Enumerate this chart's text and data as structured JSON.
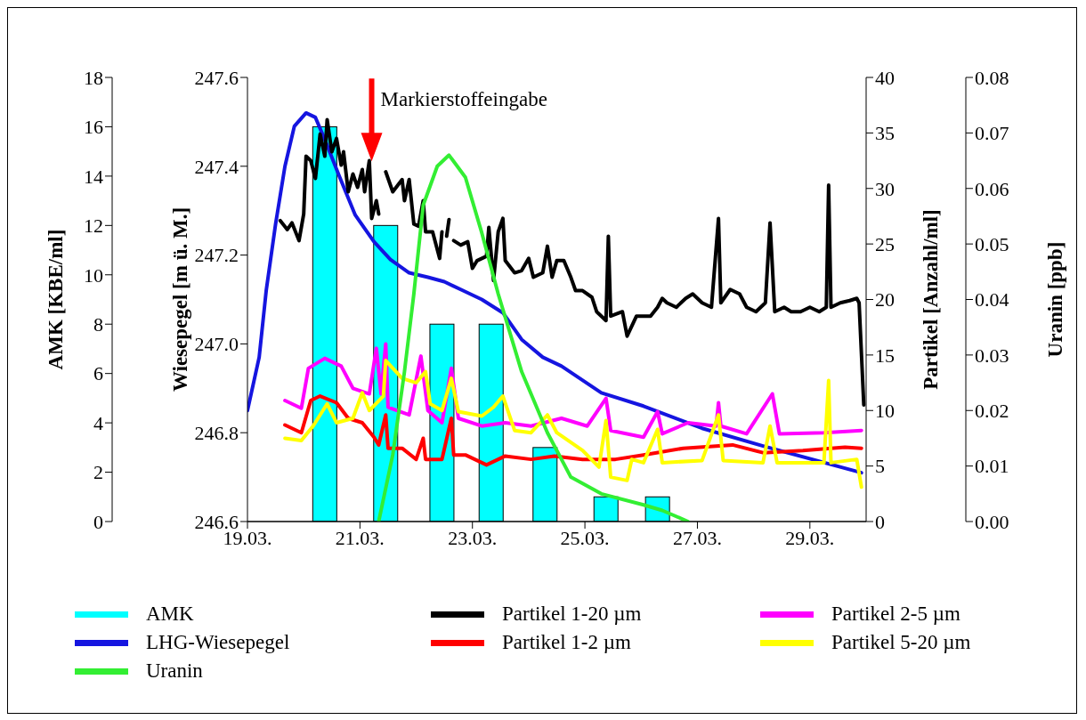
{
  "chart_data": [
    {
      "type": "line",
      "ylabel": "AMK [KBE/ml]",
      "y2label": "Wiesepegel [m ü. M.]",
      "y3label": "Partikel [Anzahl/ml]",
      "xlim": [
        "--03-19",
        "--03-30"
      ],
      "xticks": [
        {
          "value": "--03-19",
          "label": "19.03."
        },
        {
          "value": "--03-21",
          "label": "21.03."
        },
        {
          "value": "--03-23",
          "label": "23.03."
        },
        {
          "value": "--03-25",
          "label": "25.03."
        },
        {
          "value": "--03-27",
          "label": "27.03."
        },
        {
          "value": "--03-29",
          "label": "29.03."
        }
      ],
      "ylim": [
        0,
        18
      ],
      "yticks": [
        0,
        2,
        4,
        6,
        8,
        10,
        12,
        14,
        16,
        18
      ],
      "y2lim": [
        246.6,
        247.6
      ],
      "y2ticks": [
        246.6,
        246.8,
        {
          "value": 247,
          "label": "247.0"
        },
        247.2,
        247.4,
        247.6
      ],
      "y3lim": [
        0,
        40
      ],
      "y3ticks": [
        0,
        5,
        10,
        15,
        20,
        25,
        30,
        35,
        40
      ],
      "legend": "bottom",
      "annotations": [
        {
          "text": "Markierstoffeingabe",
          "x": "--03-21T05:00",
          "y": 14.6
        }
      ],
      "series": [
        {
          "name": "AMK",
          "type": "bar",
          "color": "#00ffff",
          "x": [
            "--03-20T09:00",
            "--03-21T11:00",
            "--03-22T11:00",
            "--03-23T08:00",
            "--03-24T07:00",
            "--03-25T09:00",
            "--03-26T07:00"
          ],
          "values": [
            16,
            12,
            8,
            8,
            3,
            1,
            1
          ]
        },
        {
          "name": "LHG-Wiesepegel",
          "axis": "y2",
          "color": "#1515e0",
          "x": [
            "--03-19T00:00",
            "--03-19T05:00",
            "--03-19T08:00",
            "--03-19T12:00",
            "--03-19T16:00",
            "--03-19T20:00",
            "--03-20T01:00",
            "--03-20T05:00",
            "--03-20T09:00",
            "--03-20T15:00",
            "--03-20T22:00",
            "--03-21T06:00",
            "--03-21T13:00",
            "--03-21T21:00",
            "--03-22T05:00",
            "--03-22T12:00",
            "--03-22T20:00",
            "--03-23T04:00",
            "--03-23T13:00",
            "--03-23T21:00",
            "--03-24T06:00",
            "--03-24T14:00",
            "--03-25T07:00",
            "--03-26T01:00",
            "--03-27T02:00",
            "--03-28T04:00",
            "--03-29T22:00"
          ],
          "values": [
            246.85,
            246.97,
            247.12,
            247.27,
            247.4,
            247.49,
            247.52,
            247.51,
            247.46,
            247.38,
            247.29,
            247.23,
            247.19,
            247.16,
            247.15,
            247.14,
            247.12,
            247.1,
            247.07,
            247.01,
            246.97,
            246.95,
            246.89,
            246.86,
            246.81,
            246.77,
            246.71
          ]
        },
        {
          "name": "Partikel 1-20 µm",
          "axis": "y3",
          "color": "#000000",
          "x": [
            "--03-19T14:00",
            "--03-19T17:00",
            "--03-19T19:00",
            "--03-19T22:00",
            "--03-20T00:00",
            "--03-20T01:00",
            "--03-20T03:00",
            "--03-20T05:00",
            "--03-20T07:00",
            "--03-20T09:00",
            "--03-20T10:00",
            "--03-20T12:00",
            "--03-20T14:00",
            "--03-20T16:00",
            "--03-20T17:00",
            "--03-20T19:00",
            "--03-20T21:00",
            "--03-20T23:00",
            "--03-21T01:00",
            "--03-21T02:00",
            "--03-21T04:00",
            "--03-21T05:00",
            "--03-21T07:00",
            "--03-21T08:00",
            "--03-21T10:00",
            "--03-21T11:00",
            "--03-21T14:00",
            "--03-21T18:00",
            "--03-21T19:00",
            "--03-21T21:00",
            "--03-21T23:00",
            "--03-22T01:00",
            "--03-22T03:00",
            "--03-22T04:00",
            "--03-22T07:00",
            "--03-22T10:00",
            "--03-22T11:00",
            "--03-22T12:00",
            "--03-22T13:00",
            "--03-22T14:00",
            "--03-22T15:00",
            "--03-22T16:00",
            "--03-22T19:00",
            "--03-22T22:00",
            "--03-23T00:00",
            "--03-23T02:00",
            "--03-23T06:00",
            "--03-23T07:00",
            "--03-23T09:00",
            "--03-23T11:00",
            "--03-23T13:00",
            "--03-23T14:00",
            "--03-23T18:00",
            "--03-23T21:00",
            "--03-24T00:00",
            "--03-24T02:00",
            "--03-24T06:00",
            "--03-24T08:00",
            "--03-24T10:00",
            "--03-24T12:00",
            "--03-24T15:00",
            "--03-24T18:00",
            "--03-24T20:00",
            "--03-24T23:00",
            "--03-25T03:00",
            "--03-25T05:00",
            "--03-25T09:00",
            "--03-25T10:00",
            "--03-25T11:00",
            "--03-25T16:00",
            "--03-25T18:00",
            "--03-25T22:00",
            "--03-26T04:00",
            "--03-26T07:00",
            "--03-26T09:00",
            "--03-26T11:00",
            "--03-26T15:00",
            "--03-26T19:00",
            "--03-26T22:00",
            "--03-27T02:00",
            "--03-27T06:00",
            "--03-27T09:00",
            "--03-27T10:00",
            "--03-27T14:00",
            "--03-27T18:00",
            "--03-27T21:00",
            "--03-28T01:00",
            "--03-28T05:00",
            "--03-28T07:00",
            "--03-28T09:00",
            "--03-28T13:00",
            "--03-28T16:00",
            "--03-28T20:00",
            "--03-29T00:00",
            "--03-29T04:00",
            "--03-29T07:00",
            "--03-29T08:00",
            "--03-29T09:00",
            "--03-29T13:00",
            "--03-29T17:00",
            "--03-29T20:00",
            "--03-29T21:00",
            "--03-29T23:00"
          ],
          "values": [
            27.1,
            26.3,
            26.9,
            25.3,
            27.7,
            32.9,
            32.5,
            30.9,
            34.9,
            32.9,
            36.2,
            33.3,
            34.5,
            32.1,
            33.3,
            29.7,
            31.3,
            30.1,
            31.7,
            29.7,
            32.5,
            27.3,
            28.9,
            27.7,
            null,
            31.5,
            29.7,
            30.8,
            28.9,
            30.8,
            26.8,
            26.6,
            28.9,
            26.1,
            26.1,
            23.7,
            26.1,
            null,
            25.7,
            27.2,
            null,
            25.3,
            24.9,
            25.2,
            22.8,
            23.5,
            23.9,
            26.5,
            21.7,
            26.1,
            27.3,
            23.5,
            22.4,
            22.6,
            23.7,
            22.0,
            22.4,
            24.8,
            22.0,
            23.5,
            23.5,
            22.0,
            20.8,
            20.8,
            20.2,
            18.9,
            18.1,
            25.7,
            18.5,
            18.9,
            16.7,
            18.5,
            18.5,
            19.3,
            20.1,
            19.7,
            19.3,
            20.1,
            20.5,
            19.7,
            19.3,
            27.3,
            19.7,
            20.9,
            20.5,
            19.3,
            18.9,
            19.7,
            26.9,
            18.9,
            19.3,
            18.9,
            18.9,
            19.3,
            18.9,
            19.3,
            30.3,
            19.3,
            19.7,
            19.9,
            20.1,
            19.7,
            10.5
          ]
        },
        {
          "name": "Partikel 1-2 µm",
          "axis": "y3",
          "color": "#ff0000",
          "x": [
            "--03-19T16:00",
            "--03-19T23:00",
            "--03-20T03:00",
            "--03-20T07:00",
            "--03-20T14:00",
            "--03-20T19:00",
            "--03-21T01:00",
            "--03-21T06:00",
            "--03-21T08:00",
            "--03-21T11:00",
            "--03-21T12:00",
            "--03-21T18:00",
            "--03-22T00:00",
            "--03-22T03:00",
            "--03-22T04:00",
            "--03-22T11:00",
            "--03-22T15:00",
            "--03-22T16:00",
            "--03-22T21:00",
            "--03-23T06:00",
            "--03-23T14:00",
            "--03-24T01:00",
            "--03-24T11:00",
            "--03-24T23:00",
            "--03-25T13:00",
            "--03-26T01:00",
            "--03-26T18:00",
            "--03-27T15:00",
            "--03-28T04:00",
            "--03-28T21:00",
            "--03-29T15:00",
            "--03-29T22:00"
          ],
          "values": [
            8.7,
            8.0,
            10.9,
            11.3,
            10.7,
            9.3,
            8.9,
            7.6,
            6.9,
            9.6,
            6.6,
            6.6,
            5.6,
            7.5,
            5.6,
            5.6,
            9.3,
            6.0,
            6.0,
            5.1,
            5.9,
            5.6,
            5.9,
            5.6,
            5.6,
            6.0,
            6.6,
            6.9,
            6.2,
            6.4,
            6.7,
            6.6
          ]
        },
        {
          "name": "Partikel 2-5 µm",
          "axis": "y3",
          "color": "#ff00ff",
          "x": [
            "--03-19T16:00",
            "--03-19T23:00",
            "--03-20T02:00",
            "--03-20T09:00",
            "--03-20T16:00",
            "--03-20T21:00",
            "--03-21T04:00",
            "--03-21T07:00",
            "--03-21T09:00",
            "--03-21T11:00",
            "--03-21T12:00",
            "--03-21T21:00",
            "--03-22T02:00",
            "--03-22T05:00",
            "--03-22T11:00",
            "--03-22T15:00",
            "--03-22T18:00",
            "--03-23T04:00",
            "--03-23T14:00",
            "--03-24T01:00",
            "--03-24T14:00",
            "--03-25T01:00",
            "--03-25T09:00",
            "--03-25T11:00",
            "--03-26T01:00",
            "--03-26T07:00",
            "--03-26T09:00",
            "--03-26T20:00",
            "--03-27T08:00",
            "--03-27T09:00",
            "--03-27T10:00",
            "--03-27T21:00",
            "--03-28T08:00",
            "--03-28T11:00",
            "--03-29T06:00",
            "--03-29T22:00"
          ],
          "values": [
            10.9,
            10.2,
            13.8,
            14.7,
            14.0,
            12.0,
            11.5,
            15.6,
            11.5,
            16.0,
            10.3,
            9.6,
            14.9,
            10.0,
            8.9,
            13.8,
            9.3,
            8.6,
            8.9,
            8.6,
            9.3,
            8.6,
            11.1,
            8.2,
            7.6,
            9.9,
            7.9,
            8.9,
            8.6,
            10.7,
            8.6,
            7.9,
            11.5,
            7.9,
            8.0,
            8.2
          ]
        },
        {
          "name": "Partikel 5-20 µm",
          "axis": "y3",
          "color": "#ffff00",
          "x": [
            "--03-19T16:00",
            "--03-19T23:00",
            "--03-20T04:00",
            "--03-20T10:00",
            "--03-20T14:00",
            "--03-20T21:00",
            "--03-21T01:00",
            "--03-21T04:00",
            "--03-21T10:00",
            "--03-21T11:00",
            "--03-21T18:00",
            "--03-22T00:00",
            "--03-22T04:00",
            "--03-22T06:00",
            "--03-22T11:00",
            "--03-22T15:00",
            "--03-22T18:00",
            "--03-23T04:00",
            "--03-23T09:00",
            "--03-23T13:00",
            "--03-23T18:00",
            "--03-24T01:00",
            "--03-24T08:00",
            "--03-24T12:00",
            "--03-24T23:00",
            "--03-25T06:00",
            "--03-25T09:00",
            "--03-25T11:00",
            "--03-25T18:00",
            "--03-25T20:00",
            "--03-26T01:00",
            "--03-26T07:00",
            "--03-26T09:00",
            "--03-27T02:00",
            "--03-27T09:00",
            "--03-27T11:00",
            "--03-28T04:00",
            "--03-28T07:00",
            "--03-28T10:00",
            "--03-29T06:00",
            "--03-29T08:00",
            "--03-29T09:00",
            "--03-29T20:00",
            "--03-29T22:00"
          ],
          "values": [
            7.5,
            7.3,
            8.6,
            10.6,
            8.9,
            9.3,
            11.6,
            10.0,
            11.3,
            14.5,
            12.9,
            12.5,
            13.5,
            10.6,
            10.0,
            12.9,
            9.9,
            9.5,
            10.3,
            11.3,
            8.2,
            8.0,
            9.6,
            8.0,
            6.4,
            4.9,
            9.1,
            4.0,
            3.7,
            5.6,
            5.3,
            8.3,
            5.3,
            5.5,
            9.6,
            5.5,
            5.3,
            8.6,
            5.3,
            5.3,
            12.7,
            5.3,
            5.6,
            3.1
          ]
        }
      ]
    },
    {
      "type": "line",
      "ylabel": "Uranin [ppb]",
      "tick_labels": "y",
      "xlim": [
        "--03-19",
        "--03-30"
      ],
      "ylim": [
        0,
        0.08
      ],
      "yticks": [
        {
          "value": 0,
          "label": "0.00"
        },
        0.01,
        0.02,
        0.03,
        0.04,
        0.05,
        0.06,
        0.07,
        0.08
      ],
      "legend": "bottom",
      "series": [
        {
          "name": "Uranin",
          "color": "#33ee33",
          "x": [
            "--03-21T08:00",
            "--03-21T14:00",
            "--03-21T19:00",
            "--03-21T23:00",
            "--03-22T03:00",
            "--03-22T09:00",
            "--03-22T14:00",
            "--03-22T21:00",
            "--03-23T04:00",
            "--03-23T11:00",
            "--03-23T21:00",
            "--03-24T08:00",
            "--03-24T18:00",
            "--03-25T07:00",
            "--03-26T01:00",
            "--03-26T09:00",
            "--03-26T20:00"
          ],
          "values": [
            0,
            0.012,
            0.027,
            0.041,
            0.057,
            0.064,
            0.066,
            0.062,
            0.052,
            0.041,
            0.027,
            0.016,
            0.008,
            0.005,
            0.003,
            0.002,
            0
          ]
        }
      ]
    }
  ]
}
